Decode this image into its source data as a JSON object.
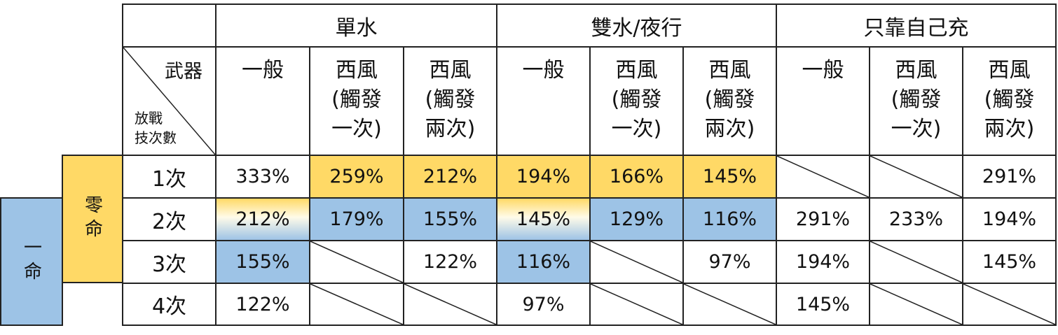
{
  "colors": {
    "yellow": "#FFD966",
    "blue": "#9DC3E6",
    "border": "#222222"
  },
  "corner": {
    "top_label": "武器",
    "bottom_label": "放戰\n技次數"
  },
  "side_labels": {
    "zero": "零命",
    "one": "一命"
  },
  "groups": [
    "單水",
    "雙水/夜行",
    "只靠自己充"
  ],
  "weapons": [
    "一般",
    "西風\n(觸發\n一次)",
    "西風\n(觸發\n兩次)",
    "一般",
    "西風\n(觸發\n一次)",
    "西風\n(觸發\n兩次)",
    "一般",
    "西風\n(觸發\n一次)",
    "西風\n(觸發\n兩次)"
  ],
  "rows": [
    {
      "label": "1次",
      "cells": [
        {
          "v": "333%",
          "f": "none"
        },
        {
          "v": "259%",
          "f": "yellow"
        },
        {
          "v": "212%",
          "f": "yellow"
        },
        {
          "v": "194%",
          "f": "yellow"
        },
        {
          "v": "166%",
          "f": "yellow"
        },
        {
          "v": "145%",
          "f": "yellow"
        },
        {
          "v": null,
          "f": "none"
        },
        {
          "v": null,
          "f": "none"
        },
        {
          "v": "291%",
          "f": "none"
        }
      ]
    },
    {
      "label": "2次",
      "cells": [
        {
          "v": "212%",
          "f": "gradient"
        },
        {
          "v": "179%",
          "f": "blue"
        },
        {
          "v": "155%",
          "f": "blue"
        },
        {
          "v": "145%",
          "f": "gradient"
        },
        {
          "v": "129%",
          "f": "blue"
        },
        {
          "v": "116%",
          "f": "blue"
        },
        {
          "v": "291%",
          "f": "none"
        },
        {
          "v": "233%",
          "f": "none"
        },
        {
          "v": "194%",
          "f": "none"
        }
      ]
    },
    {
      "label": "3次",
      "cells": [
        {
          "v": "155%",
          "f": "blue"
        },
        {
          "v": null,
          "f": "none"
        },
        {
          "v": "122%",
          "f": "none"
        },
        {
          "v": "116%",
          "f": "blue"
        },
        {
          "v": null,
          "f": "none"
        },
        {
          "v": "97%",
          "f": "none"
        },
        {
          "v": "194%",
          "f": "none"
        },
        {
          "v": null,
          "f": "none"
        },
        {
          "v": "145%",
          "f": "none"
        }
      ]
    },
    {
      "label": "4次",
      "cells": [
        {
          "v": "122%",
          "f": "none"
        },
        {
          "v": null,
          "f": "none"
        },
        {
          "v": null,
          "f": "none"
        },
        {
          "v": "97%",
          "f": "none"
        },
        {
          "v": null,
          "f": "none"
        },
        {
          "v": null,
          "f": "none"
        },
        {
          "v": "145%",
          "f": "none"
        },
        {
          "v": null,
          "f": "none"
        },
        {
          "v": null,
          "f": "none"
        }
      ]
    }
  ]
}
